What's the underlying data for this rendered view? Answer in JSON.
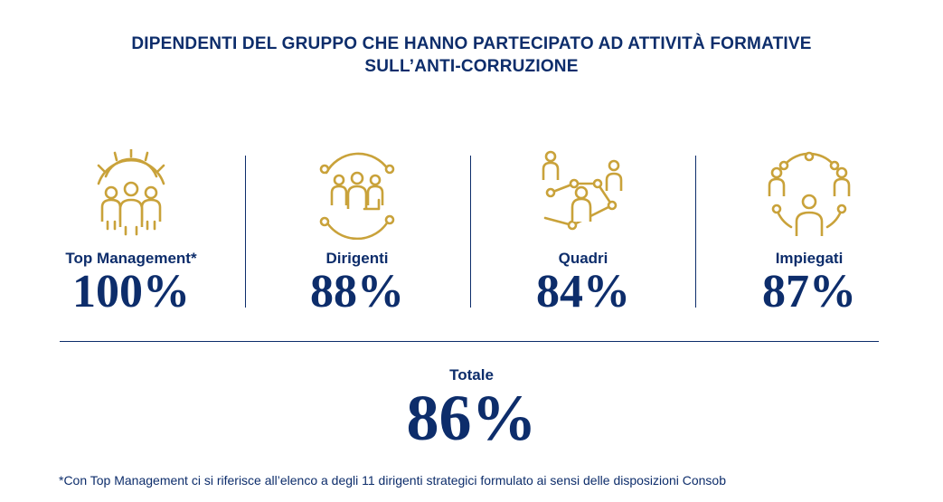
{
  "title": {
    "line1": "DIPENDENTI DEL GRUPPO CHE HANNO PARTECIPATO AD ATTIVITÀ FORMATIVE",
    "line2": "SULL’ANTI-CORRUZIONE"
  },
  "stats": [
    {
      "icon": "gear-team-icon",
      "label": "Top Management*",
      "value": "100%"
    },
    {
      "icon": "team-network-icon",
      "label": "Dirigenti",
      "value": "88%"
    },
    {
      "icon": "people-connections-icon",
      "label": "Quadri",
      "value": "84%"
    },
    {
      "icon": "people-circle-icon",
      "label": "Impiegati",
      "value": "87%"
    }
  ],
  "total": {
    "label": "Totale",
    "value": "86%"
  },
  "footnote": "*Con Top Management ci si riferisce all’elenco a degli 11 dirigenti strategici formulato ai sensi delle disposizioni Consob",
  "colors": {
    "primary": "#0d2d6b",
    "accent": "#c9a23a"
  }
}
